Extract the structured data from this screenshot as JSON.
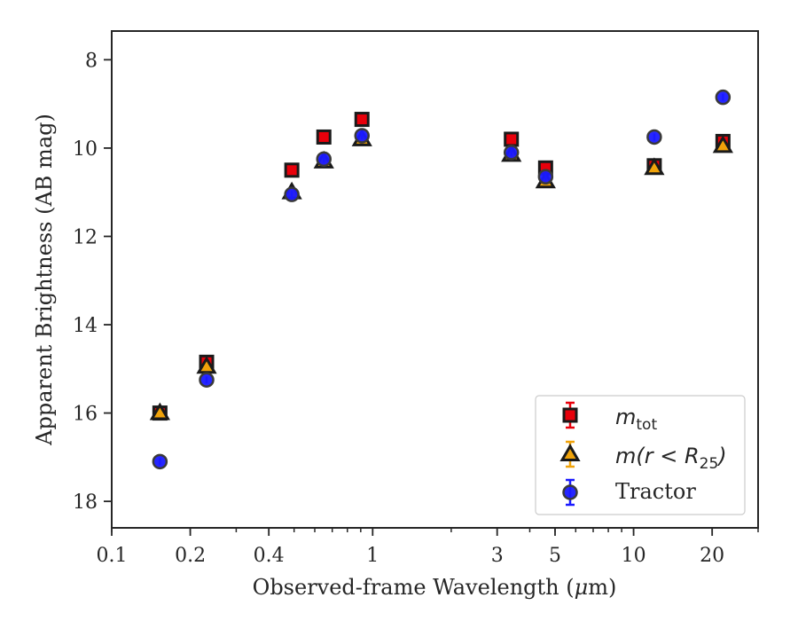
{
  "chart_data": {
    "type": "scatter",
    "title": "",
    "xlabel_prefix": "Observed-frame Wavelength (",
    "xlabel_mu": "μ",
    "xlabel_suffix": "m)",
    "ylabel": "Apparent Brightness (AB mag)",
    "xscale": "log",
    "xlim": [
      0.1,
      30
    ],
    "ylim": [
      18.6,
      7.35
    ],
    "y_inverted": true,
    "x_ticks": [
      0.1,
      0.2,
      0.4,
      1,
      3,
      5,
      10,
      20
    ],
    "x_tick_labels": [
      "0.1",
      "0.2",
      "0.4",
      "1",
      "3",
      "5",
      "10",
      "20"
    ],
    "y_ticks": [
      8,
      10,
      12,
      14,
      16,
      18
    ],
    "y_tick_labels": [
      "8",
      "10",
      "12",
      "14",
      "16",
      "18"
    ],
    "grid": false,
    "legend_position": "lower-right",
    "series": [
      {
        "name_main": "m",
        "name_sub": "tot",
        "marker": "square",
        "color": "#e8000b",
        "edge": "#1a1a1a",
        "x": [
          0.153,
          0.231,
          0.49,
          0.65,
          0.91,
          3.4,
          4.6,
          12.0,
          22.0
        ],
        "y": [
          16.0,
          14.85,
          10.5,
          9.75,
          9.35,
          9.8,
          10.45,
          10.4,
          9.85
        ]
      },
      {
        "name_main": "m(r < R",
        "name_sub": "25",
        "name_close": ")",
        "marker": "triangle",
        "color": "#f0a30a",
        "edge": "#1a1a1a",
        "x": [
          0.153,
          0.231,
          0.49,
          0.65,
          0.91,
          3.4,
          4.6,
          12.0,
          22.0
        ],
        "y": [
          16.0,
          14.95,
          11.0,
          10.3,
          9.8,
          10.15,
          10.75,
          10.45,
          9.95
        ]
      },
      {
        "name": "Tractor",
        "marker": "circle",
        "color": "#1a1aff",
        "edge": "#3a3a3a",
        "x": [
          0.153,
          0.231,
          0.49,
          0.65,
          0.91,
          3.4,
          4.6,
          12.0,
          22.0
        ],
        "y": [
          17.1,
          15.25,
          11.05,
          10.25,
          9.72,
          10.1,
          10.65,
          9.75,
          8.85
        ]
      }
    ]
  }
}
